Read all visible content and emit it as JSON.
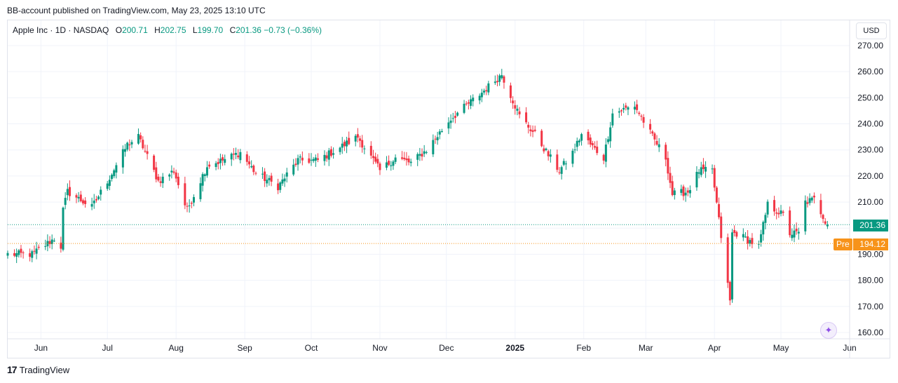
{
  "header": {
    "published": "BB-account published on TradingView.com, May 23, 2025 13:10 UTC"
  },
  "legend": {
    "symbol": "Apple Inc · 1D · NASDAQ",
    "open_label": "O",
    "open": "200.71",
    "high_label": "H",
    "high": "202.75",
    "low_label": "L",
    "low": "199.70",
    "close_label": "C",
    "close": "201.36",
    "change": "−0.73 (−0.36%)"
  },
  "currency_button": "USD",
  "last_price_badge": "201.36",
  "premarket": {
    "label": "Pre",
    "value": "194.12"
  },
  "brand": {
    "logo": "17",
    "name": "TradingView"
  },
  "colors": {
    "up": "#089981",
    "down": "#f23645",
    "premarket": "#f7931a",
    "grid": "#f0f3fa"
  },
  "chart_data": {
    "type": "candlestick",
    "ylim": [
      158,
      275
    ],
    "y_ticks": [
      "270.00",
      "260.00",
      "250.00",
      "240.00",
      "230.00",
      "220.00",
      "210.00",
      "200.00",
      "190.00",
      "180.00",
      "170.00",
      "160.00"
    ],
    "y_tick_values": [
      270,
      260,
      250,
      240,
      230,
      220,
      210,
      200,
      190,
      180,
      170,
      160
    ],
    "x_ticks": [
      "Jun",
      "Jul",
      "Aug",
      "Sep",
      "Oct",
      "Nov",
      "Dec",
      "2025",
      "Feb",
      "Mar",
      "Apr",
      "May",
      "Jun"
    ],
    "x_tick_dates": [
      "2024-06-01",
      "2024-07-01",
      "2024-08-01",
      "2024-09-01",
      "2024-10-01",
      "2024-11-01",
      "2024-12-01",
      "2025-01-01",
      "2025-02-01",
      "2025-03-01",
      "2025-04-01",
      "2025-05-01",
      "2025-06-01"
    ],
    "x_range": [
      "2024-05-17",
      "2025-06-01"
    ],
    "grid": true,
    "last_price": 201.36,
    "premarket_price": 194.12,
    "anchors": [
      [
        "2024-05-17",
        190
      ],
      [
        "2024-05-28",
        190
      ],
      [
        "2024-06-07",
        196
      ],
      [
        "2024-06-10",
        193
      ],
      [
        "2024-06-11",
        207
      ],
      [
        "2024-06-13",
        214
      ],
      [
        "2024-06-24",
        208
      ],
      [
        "2024-07-03",
        221
      ],
      [
        "2024-07-10",
        232
      ],
      [
        "2024-07-15",
        235
      ],
      [
        "2024-07-24",
        218
      ],
      [
        "2024-07-31",
        222
      ],
      [
        "2024-08-05",
        209
      ],
      [
        "2024-08-06",
        207
      ],
      [
        "2024-08-15",
        224
      ],
      [
        "2024-08-22",
        226
      ],
      [
        "2024-08-30",
        229
      ],
      [
        "2024-09-06",
        221
      ],
      [
        "2024-09-16",
        216
      ],
      [
        "2024-09-25",
        226
      ],
      [
        "2024-10-04",
        226
      ],
      [
        "2024-10-14",
        231
      ],
      [
        "2024-10-22",
        235
      ],
      [
        "2024-11-01",
        222
      ],
      [
        "2024-11-08",
        227
      ],
      [
        "2024-11-15",
        225
      ],
      [
        "2024-11-22",
        230
      ],
      [
        "2024-12-03",
        242
      ],
      [
        "2024-12-10",
        247
      ],
      [
        "2024-12-17",
        252
      ],
      [
        "2024-12-26",
        259
      ],
      [
        "2025-01-03",
        243
      ],
      [
        "2025-01-10",
        236
      ],
      [
        "2025-01-16",
        228
      ],
      [
        "2025-01-21",
        222
      ],
      [
        "2025-01-27",
        229
      ],
      [
        "2025-01-31",
        236
      ],
      [
        "2025-02-04",
        232
      ],
      [
        "2025-02-10",
        227
      ],
      [
        "2025-02-14",
        244
      ],
      [
        "2025-02-24",
        247
      ],
      [
        "2025-03-04",
        235
      ],
      [
        "2025-03-10",
        227
      ],
      [
        "2025-03-13",
        213
      ],
      [
        "2025-03-20",
        214
      ],
      [
        "2025-03-25",
        222
      ],
      [
        "2025-03-31",
        222
      ],
      [
        "2025-04-03",
        203
      ],
      [
        "2025-04-08",
        172
      ],
      [
        "2025-04-09",
        198
      ],
      [
        "2025-04-11",
        198
      ],
      [
        "2025-04-21",
        193
      ],
      [
        "2025-04-25",
        209
      ],
      [
        "2025-05-02",
        205
      ],
      [
        "2025-05-05",
        198
      ],
      [
        "2025-05-09",
        198
      ],
      [
        "2025-05-12",
        210
      ],
      [
        "2025-05-16",
        211
      ],
      [
        "2025-05-22",
        201.36
      ]
    ]
  }
}
